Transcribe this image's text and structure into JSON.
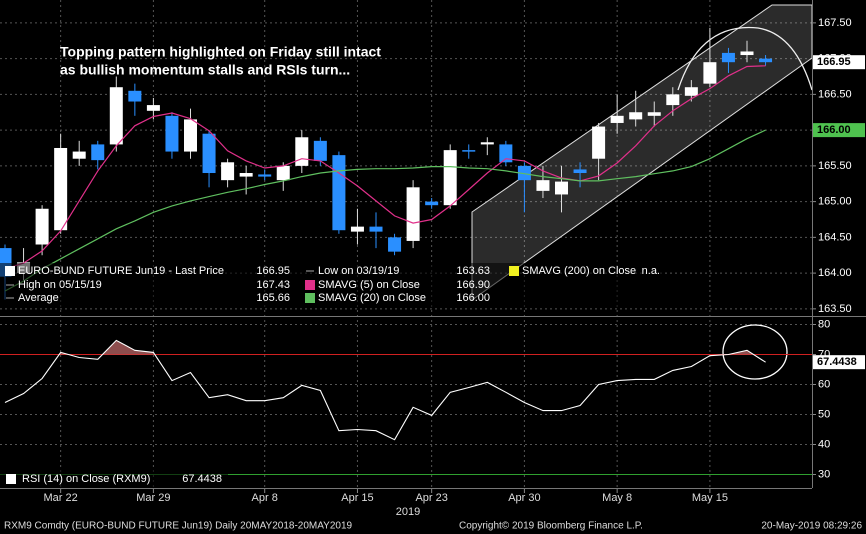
{
  "chart_data": [
    {
      "type": "candlestick",
      "categories": [
        null,
        null,
        null,
        "Mar 22",
        null,
        null,
        null,
        null,
        "Mar 29",
        null,
        null,
        null,
        null,
        null,
        "Apr 8",
        null,
        null,
        null,
        null,
        "Apr 15",
        null,
        null,
        null,
        "Apr 23",
        null,
        null,
        null,
        null,
        "Apr 30",
        null,
        null,
        null,
        null,
        "May 8",
        null,
        null,
        null,
        null,
        "May 15",
        null,
        null,
        null
      ],
      "x_year": "2019",
      "open": [
        164.35,
        164.0,
        164.4,
        164.6,
        165.6,
        165.8,
        165.8,
        166.55,
        166.27,
        166.2,
        165.7,
        165.95,
        165.3,
        165.35,
        165.38,
        165.3,
        165.5,
        165.85,
        165.65,
        164.58,
        164.65,
        164.5,
        164.45,
        165.0,
        164.95,
        165.72,
        165.8,
        165.8,
        165.5,
        165.15,
        165.1,
        165.45,
        165.6,
        166.1,
        166.15,
        166.2,
        166.35,
        166.48,
        166.65,
        167.08,
        167.05,
        167.0
      ],
      "high": [
        164.4,
        164.35,
        164.95,
        165.95,
        165.85,
        165.85,
        166.75,
        166.65,
        166.45,
        166.25,
        166.3,
        166.0,
        165.6,
        165.5,
        165.45,
        165.55,
        166.0,
        165.9,
        165.7,
        164.9,
        164.85,
        164.55,
        165.3,
        165.05,
        165.8,
        165.8,
        165.9,
        165.85,
        165.55,
        165.5,
        165.5,
        165.55,
        166.1,
        166.5,
        166.55,
        166.4,
        166.6,
        166.7,
        167.43,
        167.15,
        167.25,
        167.05
      ],
      "low": [
        163.63,
        163.9,
        164.25,
        164.55,
        165.5,
        165.45,
        165.7,
        166.2,
        166.15,
        165.6,
        165.6,
        165.2,
        165.2,
        165.1,
        165.3,
        165.15,
        165.4,
        165.5,
        164.55,
        164.4,
        164.35,
        164.25,
        164.35,
        164.9,
        164.9,
        165.6,
        165.65,
        165.5,
        164.85,
        165.05,
        164.85,
        165.2,
        165.3,
        165.95,
        166.05,
        166.05,
        166.2,
        166.4,
        166.6,
        166.8,
        166.95,
        166.9
      ],
      "close": [
        163.95,
        164.15,
        164.9,
        165.75,
        165.7,
        165.58,
        166.6,
        166.4,
        166.35,
        165.7,
        166.15,
        165.4,
        165.55,
        165.4,
        165.35,
        165.5,
        165.9,
        165.57,
        164.6,
        164.65,
        164.58,
        164.3,
        165.2,
        164.95,
        165.72,
        165.7,
        165.83,
        165.55,
        165.3,
        165.3,
        165.28,
        165.4,
        166.05,
        166.2,
        166.25,
        166.25,
        166.5,
        166.6,
        166.95,
        166.95,
        167.1,
        166.95
      ],
      "up_color": "#ffffff",
      "down_color": "#2a8fff",
      "series": [
        {
          "color": "#e0308a",
          "values": [
            164.06,
            164.14,
            164.31,
            164.59,
            165.01,
            165.43,
            165.78,
            166.06,
            166.19,
            166.24,
            166.16,
            165.99,
            165.71,
            165.57,
            165.47,
            165.5,
            165.6,
            165.57,
            165.4,
            165.22,
            165.01,
            164.8,
            164.7,
            164.75,
            164.94,
            165.17,
            165.4,
            165.6,
            165.57,
            165.43,
            165.33,
            165.29,
            165.36,
            165.54,
            165.78,
            166.06,
            166.27,
            166.44,
            166.58,
            166.76,
            166.89,
            166.9
          ]
        },
        {
          "color": "#5fbf5f",
          "values": [
            163.75,
            163.89,
            164.06,
            164.2,
            164.34,
            164.48,
            164.62,
            164.73,
            164.85,
            164.94,
            165.01,
            165.07,
            165.13,
            165.18,
            165.24,
            165.29,
            165.35,
            165.4,
            165.43,
            165.45,
            165.46,
            165.46,
            165.47,
            165.49,
            165.49,
            165.47,
            165.46,
            165.43,
            165.39,
            165.35,
            165.32,
            165.29,
            165.29,
            165.32,
            165.35,
            165.39,
            165.43,
            165.49,
            165.6,
            165.74,
            165.88,
            166.0
          ]
        }
      ],
      "ylim": [
        163.4,
        167.75
      ],
      "yticks": [
        {
          "value": 163.5,
          "label": "163.50"
        },
        {
          "value": 164,
          "label": "164.00"
        },
        {
          "value": 164.5,
          "label": "164.50"
        },
        {
          "value": 165,
          "label": "165.00"
        },
        {
          "value": 165.5,
          "label": "165.50"
        },
        {
          "value": 166,
          "label": "166.00"
        },
        {
          "value": 166.5,
          "label": "166.50"
        },
        {
          "value": 167,
          "label": "167.00"
        },
        {
          "value": 167.5,
          "label": "167.50"
        }
      ],
      "price_tags": [
        {
          "value": 166.95,
          "label": "166.95",
          "color": "#ffffff"
        },
        {
          "value": 166,
          "label": "166.00",
          "color": "#4fc24f"
        }
      ],
      "legend_entries": [
        {
          "label": "EURO-BUND FUTURE Jun19 - Last Price",
          "value": "166.95",
          "color": "#ffffff"
        },
        {
          "label": "Low on 03/19/19",
          "value": "163.63"
        },
        {
          "label": "SMAVG (200)  on Close",
          "value": "n.a.",
          "color": "#f0f020"
        },
        {
          "label": "High on 05/15/19",
          "value": "167.43"
        },
        {
          "label": "SMAVG (5)  on Close",
          "value": "166.90",
          "color": "#e0308a"
        },
        {
          "label": "Average",
          "value": "165.66"
        },
        {
          "label": "SMAVG (20)  on Close",
          "value": "166.00",
          "color": "#5fbf5f"
        }
      ],
      "grid": true
    },
    {
      "type": "line",
      "values": [
        54,
        57,
        62,
        70.7,
        69,
        68.4,
        74.7,
        71.4,
        70.7,
        61.3,
        64,
        55.6,
        56.6,
        54.6,
        54.6,
        55.6,
        59.7,
        58,
        44.6,
        45,
        44.6,
        41.6,
        52.4,
        49.7,
        57.4,
        59,
        60.7,
        57.4,
        54,
        51.3,
        51.3,
        53,
        60,
        61.3,
        61.7,
        61.7,
        64.7,
        66,
        69.6,
        70,
        71.4,
        67.4438
      ],
      "color": "#ffffff",
      "ylim": [
        25.5,
        82.5
      ],
      "yticks": [
        30,
        40,
        50,
        60,
        70,
        80
      ],
      "reference_lines": [
        {
          "value": 70,
          "color": "#d02020"
        },
        {
          "value": 30,
          "color": "#2f9f2f"
        }
      ],
      "fill_above_color": "#b06060",
      "value_tag": 67.4438,
      "legend": {
        "label": "RSI (14)  on Close (RXM9)",
        "value": "67.4438",
        "color": "#ffffff"
      },
      "grid": true
    }
  ],
  "annotation": [
    "Topping pattern highlighted on Friday still intact",
    "as bullish momentum stalls and RSIs turn..."
  ],
  "footer": {
    "left": "RXM9 Comdty (EURO-BUND FUTURE  Jun19)  Daily 20MAY2018-20MAY2019",
    "center": "Copyright© 2019 Bloomberg Finance L.P.",
    "right": "20-May-2019 08:29:26"
  }
}
